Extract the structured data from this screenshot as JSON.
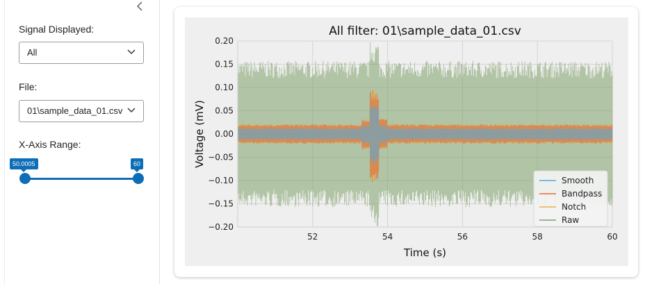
{
  "sidebar": {
    "collapse_icon": "chevron-left-icon",
    "signal": {
      "label": "Signal Displayed:",
      "value": "All"
    },
    "file": {
      "label": "File:",
      "value": "01\\sample_data_01.csv"
    },
    "xrange": {
      "label": "X-Axis Range:",
      "min_label": "50.0005",
      "max_label": "60",
      "low": 50.0005,
      "high": 60
    },
    "accent": "#0d6db6"
  },
  "chart_data": {
    "type": "line",
    "title": "All filter: 01\\sample_data_01.csv",
    "xlabel": "Time (s)",
    "ylabel": "Voltage (mV)",
    "xlim": [
      50,
      60
    ],
    "ylim": [
      -0.2,
      0.2
    ],
    "xticks": [
      "52",
      "54",
      "56",
      "58",
      "60"
    ],
    "yticks": [
      "0.20",
      "0.15",
      "0.10",
      "0.05",
      "0.00",
      "−0.05",
      "−0.10",
      "−0.15",
      "−0.20"
    ],
    "grid": true,
    "legend_position": "lower-right",
    "series": [
      {
        "name": "Smooth",
        "color": "#5aa8d6",
        "envelope": [
          -0.012,
          0.012
        ],
        "spike": [
          -0.06,
          0.06
        ]
      },
      {
        "name": "Bandpass",
        "color": "#e06a3a",
        "envelope": [
          -0.02,
          0.02
        ],
        "spike": [
          -0.1,
          0.09
        ]
      },
      {
        "name": "Notch",
        "color": "#e8b04a",
        "envelope": [
          -0.02,
          0.02
        ],
        "spike": [
          -0.1,
          0.09
        ]
      },
      {
        "name": "Raw",
        "color": "#7fa06a",
        "envelope": [
          -0.15,
          0.15
        ],
        "spike": [
          -0.19,
          0.19
        ]
      }
    ],
    "event_x": 53.65
  }
}
